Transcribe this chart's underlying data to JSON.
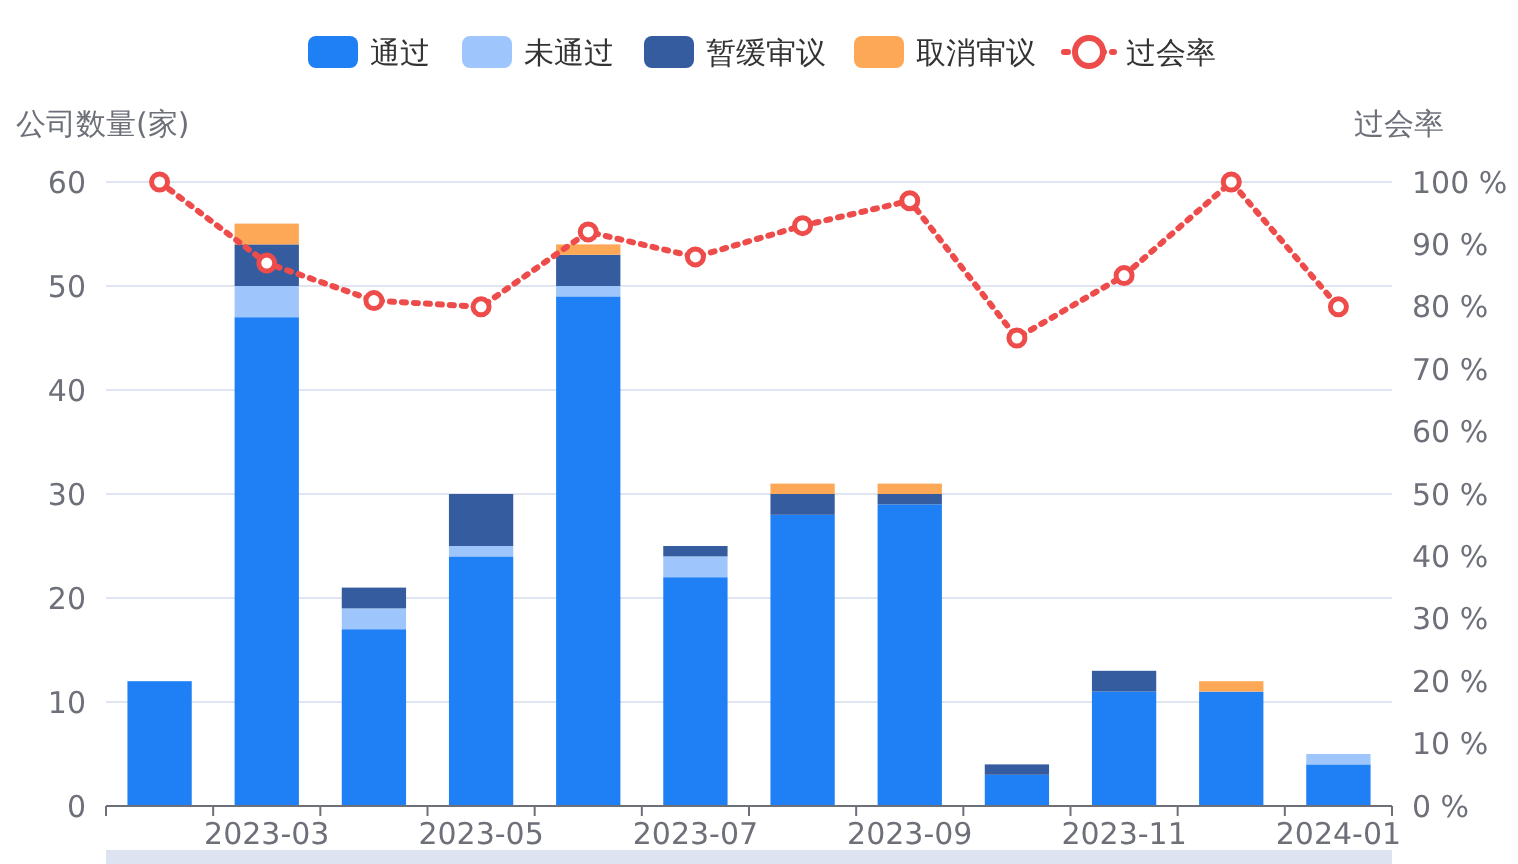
{
  "chart_data": {
    "type": "bar",
    "stacked": true,
    "ylabel": "公司数量(家)",
    "y2label": "过会率",
    "categories": [
      null,
      "2023-03",
      null,
      "2023-05",
      null,
      "2023-07",
      null,
      "2023-09",
      null,
      "2023-11",
      null,
      "2024-01"
    ],
    "series": [
      {
        "name": "通过",
        "color": "#1f80f5",
        "values": [
          12,
          47,
          17,
          24,
          49,
          22,
          28,
          29,
          3,
          11,
          11,
          4
        ]
      },
      {
        "name": "未通过",
        "color": "#9ec5fc",
        "values": [
          0,
          3,
          2,
          1,
          1,
          2,
          0,
          0,
          0,
          0,
          0,
          1
        ]
      },
      {
        "name": "暂缓审议",
        "color": "#345c9e",
        "values": [
          0,
          4,
          2,
          5,
          3,
          1,
          2,
          1,
          1,
          2,
          0,
          0
        ]
      },
      {
        "name": "取消审议",
        "color": "#fda856",
        "values": [
          0,
          2,
          0,
          0,
          1,
          0,
          1,
          1,
          0,
          0,
          1,
          0
        ]
      },
      {
        "name": "过会率",
        "type": "line",
        "axis": "y2",
        "color": "#ee4b4b",
        "marker": "circle",
        "line_style": "dotted",
        "values": [
          100,
          87,
          81,
          80,
          92,
          88,
          93,
          97,
          75,
          85,
          100,
          80
        ]
      }
    ],
    "ylim": [
      0,
      60
    ],
    "yticks": [
      0,
      10,
      20,
      30,
      40,
      50,
      60
    ],
    "y2lim": [
      0,
      100
    ],
    "y2ticks": [
      {
        "value": 0,
        "label": "0 %"
      },
      {
        "value": 10,
        "label": "10 %"
      },
      {
        "value": 20,
        "label": "20 %"
      },
      {
        "value": 30,
        "label": "30 %"
      },
      {
        "value": 40,
        "label": "40 %"
      },
      {
        "value": 50,
        "label": "50 %"
      },
      {
        "value": 60,
        "label": "60 %"
      },
      {
        "value": 70,
        "label": "70 %"
      },
      {
        "value": 80,
        "label": "80 %"
      },
      {
        "value": 90,
        "label": "90 %"
      },
      {
        "value": 100,
        "label": "100 %"
      }
    ],
    "grid": "y",
    "legend": "top"
  }
}
